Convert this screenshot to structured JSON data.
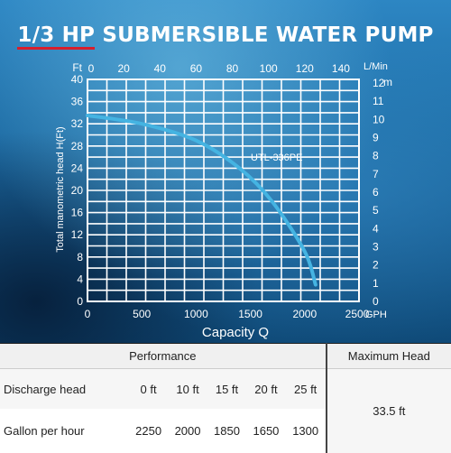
{
  "title": {
    "highlight": "1/3 HP",
    "rest": "SUBMERSIBLE WATER PUMP"
  },
  "colors": {
    "curve": "#45b4e2",
    "grid": "#ffffff",
    "accent": "#d81e2c"
  },
  "chart_data": {
    "type": "line",
    "series": [
      {
        "name": "UTL-336PE",
        "x": [
          0,
          500,
          1000,
          1400,
          1700,
          2000,
          2100
        ],
        "y": [
          33.5,
          32,
          29,
          24,
          18,
          9,
          3
        ]
      }
    ],
    "xlabel": "Capacity Q",
    "x_unit": "GPH",
    "xlim": [
      0,
      2500
    ],
    "x_ticks": [
      "0",
      "500",
      "1000",
      "1500",
      "2000",
      "2500"
    ],
    "ylabel": "Total manometric head  H(Ft)",
    "ylim": [
      0,
      40
    ],
    "y_ticks_left": [
      "0",
      "4",
      "8",
      "12",
      "16",
      "20",
      "24",
      "28",
      "32",
      "36",
      "40"
    ],
    "y_unit_left": "Ft",
    "top_unit": "L/Min",
    "top_ticks": [
      "0",
      "20",
      "40",
      "60",
      "80",
      "100",
      "120",
      "140"
    ],
    "right_unit": "m",
    "right_ticks": [
      "0",
      "1",
      "2",
      "3",
      "4",
      "5",
      "6",
      "7",
      "8",
      "9",
      "10",
      "11",
      "12"
    ],
    "grid": true
  },
  "table": {
    "header_performance": "Performance",
    "header_max": "Maximum Head",
    "row1_label": "Discharge head",
    "row1_values": [
      "0 ft",
      "10 ft",
      "15 ft",
      "20 ft",
      "25 ft"
    ],
    "row2_label": "Gallon per hour",
    "row2_values": [
      "2250",
      "2000",
      "1850",
      "1650",
      "1300"
    ],
    "max_value": "33.5 ft"
  }
}
